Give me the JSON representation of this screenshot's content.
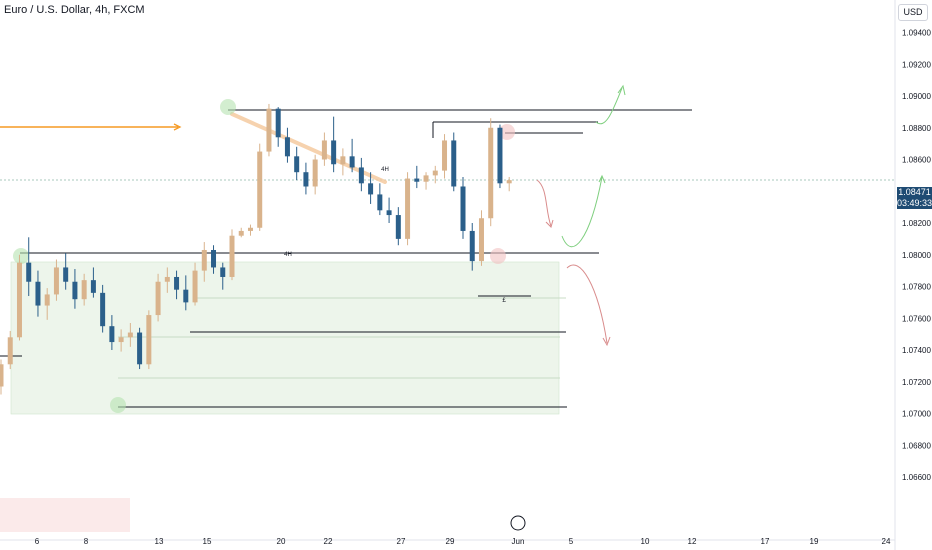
{
  "header": {
    "title": "Euro / U.S. Dollar, 4h, FXCM",
    "currency": "USD"
  },
  "price_tag": {
    "price": "1.08471",
    "countdown": "03:49:33",
    "color": "#1e4b73"
  },
  "colors": {
    "bull": "#d9b38c",
    "bear": "#2b5f8a",
    "zone": "#e8f3e6",
    "trend": "#f5c89b",
    "arrow_up": "#7fcf7f",
    "arrow_down": "#d98c8c"
  },
  "chart_data": {
    "type": "candlestick",
    "symbol": "EURUSD",
    "timeframe": "4h",
    "ylim": [
      1.065,
      1.0955
    ],
    "yticks": [
      "1.09400",
      "1.09200",
      "1.09000",
      "1.08800",
      "1.08600",
      "1.08200",
      "1.08000",
      "1.07800",
      "1.07600",
      "1.07400",
      "1.07200",
      "1.07000",
      "1.06800",
      "1.06600"
    ],
    "xticks": [
      "6",
      "8",
      "13",
      "15",
      "20",
      "22",
      "27",
      "29",
      "Jun",
      "5",
      "10",
      "12",
      "17",
      "19",
      "24"
    ],
    "last_price": 1.08471,
    "annotations": [
      "4H",
      "4H",
      "£"
    ],
    "candles": [
      [
        1.0717,
        1.0734,
        1.0712,
        1.0731
      ],
      [
        1.0731,
        1.0752,
        1.0728,
        1.0748
      ],
      [
        1.0748,
        1.08,
        1.0746,
        1.0795
      ],
      [
        1.0795,
        1.0811,
        1.0774,
        1.0783
      ],
      [
        1.0783,
        1.079,
        1.0761,
        1.0768
      ],
      [
        1.0768,
        1.0779,
        1.0759,
        1.0775
      ],
      [
        1.0775,
        1.0797,
        1.0771,
        1.0792
      ],
      [
        1.0792,
        1.0801,
        1.0778,
        1.0783
      ],
      [
        1.0783,
        1.0791,
        1.0766,
        1.0772
      ],
      [
        1.0772,
        1.0788,
        1.0768,
        1.0784
      ],
      [
        1.0784,
        1.0792,
        1.0773,
        1.0776
      ],
      [
        1.0776,
        1.0781,
        1.0751,
        1.0755
      ],
      [
        1.0755,
        1.0762,
        1.074,
        1.0745
      ],
      [
        1.0745,
        1.0753,
        1.0739,
        1.0748
      ],
      [
        1.0748,
        1.0757,
        1.0742,
        1.0751
      ],
      [
        1.0751,
        1.0754,
        1.0728,
        1.0731
      ],
      [
        1.0731,
        1.0765,
        1.0728,
        1.0762
      ],
      [
        1.0762,
        1.0788,
        1.0758,
        1.0783
      ],
      [
        1.0783,
        1.0792,
        1.0776,
        1.0786
      ],
      [
        1.0786,
        1.079,
        1.0772,
        1.0778
      ],
      [
        1.0778,
        1.0787,
        1.0765,
        1.077
      ],
      [
        1.077,
        1.0795,
        1.0768,
        1.079
      ],
      [
        1.079,
        1.0808,
        1.0783,
        1.0803
      ],
      [
        1.0803,
        1.0806,
        1.0788,
        1.0792
      ],
      [
        1.0792,
        1.0795,
        1.0778,
        1.0786
      ],
      [
        1.0786,
        1.0816,
        1.0784,
        1.0812
      ],
      [
        1.0812,
        1.0817,
        1.0811,
        1.0815
      ],
      [
        1.0815,
        1.0819,
        1.0812,
        1.0817
      ],
      [
        1.0817,
        1.087,
        1.0815,
        1.0865
      ],
      [
        1.0865,
        1.0895,
        1.0862,
        1.0892
      ],
      [
        1.0892,
        1.0893,
        1.0868,
        1.0874
      ],
      [
        1.0874,
        1.088,
        1.0858,
        1.0862
      ],
      [
        1.0862,
        1.0868,
        1.0847,
        1.0852
      ],
      [
        1.0852,
        1.0858,
        1.0838,
        1.0843
      ],
      [
        1.0843,
        1.0863,
        1.0838,
        1.086
      ],
      [
        1.086,
        1.0877,
        1.0856,
        1.0872
      ],
      [
        1.0872,
        1.0887,
        1.0852,
        1.0857
      ],
      [
        1.0857,
        1.0867,
        1.085,
        1.0862
      ],
      [
        1.0862,
        1.0873,
        1.0852,
        1.0855
      ],
      [
        1.0855,
        1.0861,
        1.084,
        1.0845
      ],
      [
        1.0845,
        1.0852,
        1.0832,
        1.0838
      ],
      [
        1.0838,
        1.0845,
        1.0825,
        1.0828
      ],
      [
        1.0828,
        1.0836,
        1.082,
        1.0825
      ],
      [
        1.0825,
        1.083,
        1.0806,
        1.081
      ],
      [
        1.081,
        1.0852,
        1.0806,
        1.0848
      ],
      [
        1.0848,
        1.0856,
        1.0842,
        1.0846
      ],
      [
        1.0846,
        1.0852,
        1.0841,
        1.085
      ],
      [
        1.085,
        1.0856,
        1.0845,
        1.0853
      ],
      [
        1.0853,
        1.0876,
        1.0848,
        1.0872
      ],
      [
        1.0872,
        1.0877,
        1.084,
        1.0843
      ],
      [
        1.0843,
        1.0849,
        1.081,
        1.0815
      ],
      [
        1.0815,
        1.082,
        1.079,
        1.0796
      ],
      [
        1.0796,
        1.0828,
        1.0793,
        1.0823
      ],
      [
        1.0823,
        1.0886,
        1.0818,
        1.088
      ],
      [
        1.088,
        1.0882,
        1.0842,
        1.0845
      ],
      [
        1.0845,
        1.0849,
        1.084,
        1.0847
      ]
    ]
  }
}
